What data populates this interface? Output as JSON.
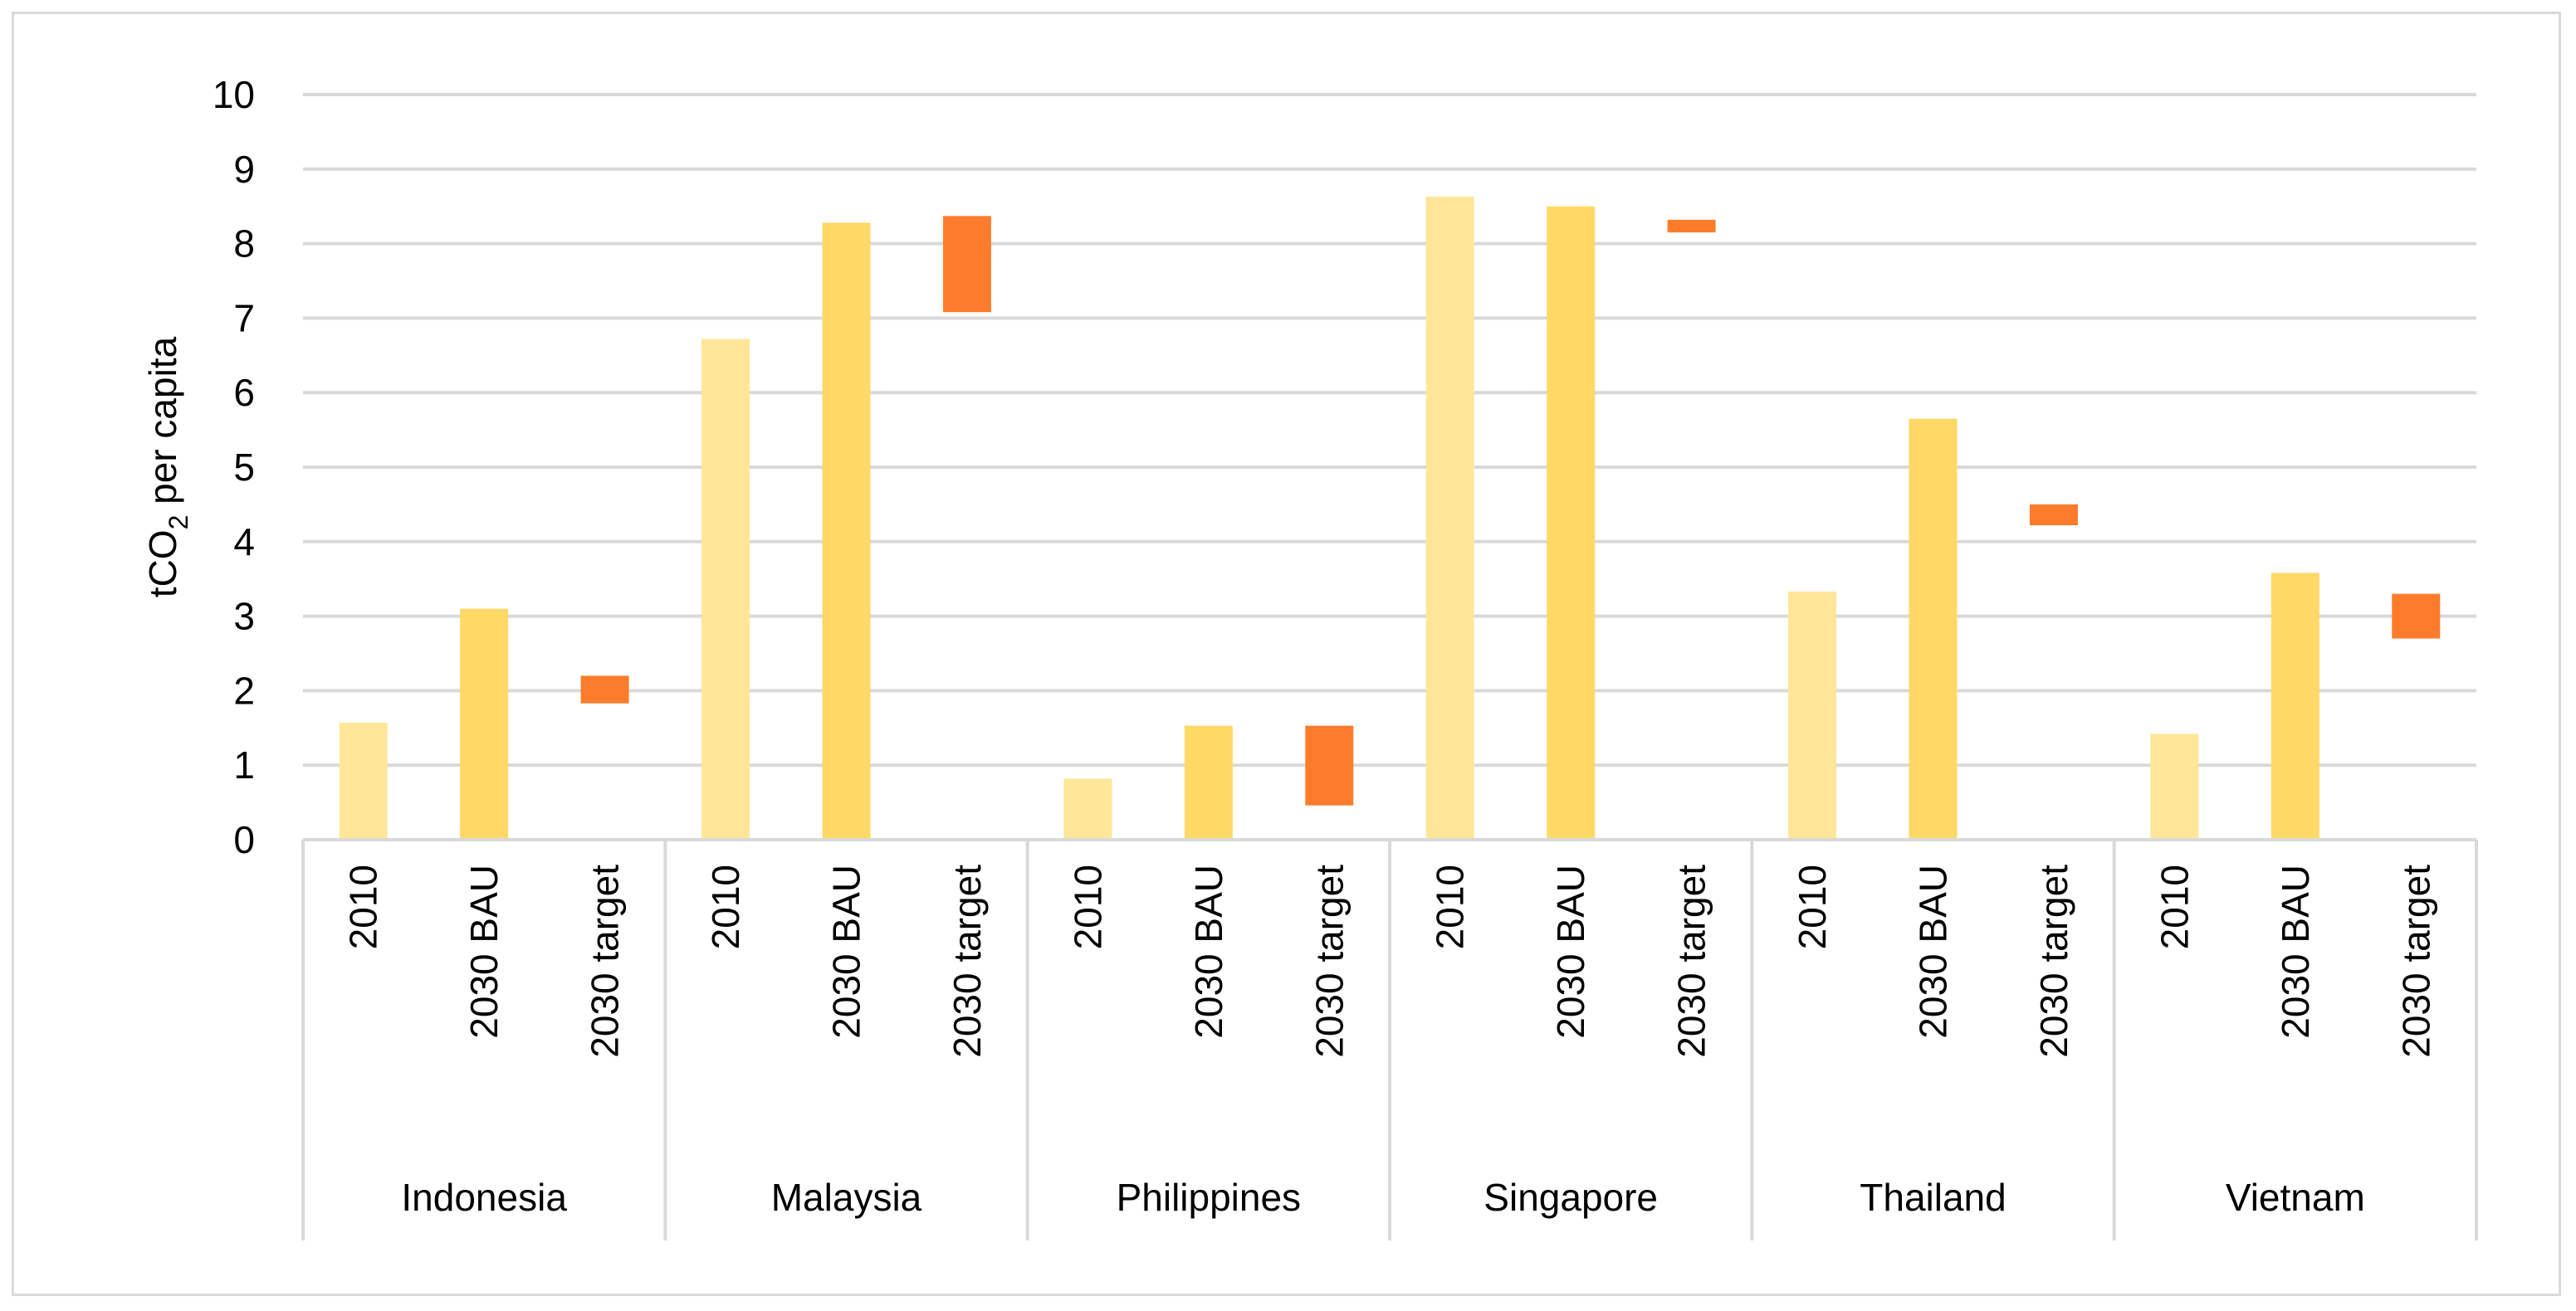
{
  "chart_data": {
    "type": "bar",
    "title": "",
    "xlabel": "",
    "ylabel": "tCO",
    "ylabel_sub": "2",
    "ylabel_tail": " per capita",
    "ylim": [
      0,
      10
    ],
    "yticks": [
      "0",
      "1",
      "2",
      "3",
      "4",
      "5",
      "6",
      "7",
      "8",
      "9",
      "10"
    ],
    "grid": true,
    "legend": "none",
    "groups": [
      {
        "country": "Indonesia",
        "bars": [
          {
            "label": "2010",
            "kind": "2010",
            "low": 0,
            "high": 1.57
          },
          {
            "label": "2030 BAU",
            "kind": "bau",
            "low": 0,
            "high": 3.1
          },
          {
            "label": "2030 target",
            "kind": "target",
            "low": 1.83,
            "high": 2.2
          }
        ]
      },
      {
        "country": "Malaysia",
        "bars": [
          {
            "label": "2010",
            "kind": "2010",
            "low": 0,
            "high": 6.72
          },
          {
            "label": "2030 BAU",
            "kind": "bau",
            "low": 0,
            "high": 8.28
          },
          {
            "label": "2030 target",
            "kind": "target",
            "low": 7.08,
            "high": 8.37
          }
        ]
      },
      {
        "country": "Philippines",
        "bars": [
          {
            "label": "2010",
            "kind": "2010",
            "low": 0,
            "high": 0.82
          },
          {
            "label": "2030 BAU",
            "kind": "bau",
            "low": 0,
            "high": 1.53
          },
          {
            "label": "2030 target",
            "kind": "target",
            "low": 0.46,
            "high": 1.53
          }
        ]
      },
      {
        "country": "Singapore",
        "bars": [
          {
            "label": "2010",
            "kind": "2010",
            "low": 0,
            "high": 8.63
          },
          {
            "label": "2030 BAU",
            "kind": "bau",
            "low": 0,
            "high": 8.5
          },
          {
            "label": "2030 target",
            "kind": "target",
            "low": 8.15,
            "high": 8.32
          }
        ]
      },
      {
        "country": "Thailand",
        "bars": [
          {
            "label": "2010",
            "kind": "2010",
            "low": 0,
            "high": 3.33
          },
          {
            "label": "2030 BAU",
            "kind": "bau",
            "low": 0,
            "high": 5.65
          },
          {
            "label": "2030 target",
            "kind": "target",
            "low": 4.22,
            "high": 4.5
          }
        ]
      },
      {
        "country": "Vietnam",
        "bars": [
          {
            "label": "2010",
            "kind": "2010",
            "low": 0,
            "high": 1.42
          },
          {
            "label": "2030 BAU",
            "kind": "bau",
            "low": 0,
            "high": 3.58
          },
          {
            "label": "2030 target",
            "kind": "target",
            "low": 2.7,
            "high": 3.3
          }
        ]
      }
    ],
    "colors": {
      "2010": "#ffe699",
      "bau": "#ffd966",
      "target": "#fd7c2c",
      "grid": "#d9d9d9",
      "axis": "#d9d9d9"
    }
  }
}
